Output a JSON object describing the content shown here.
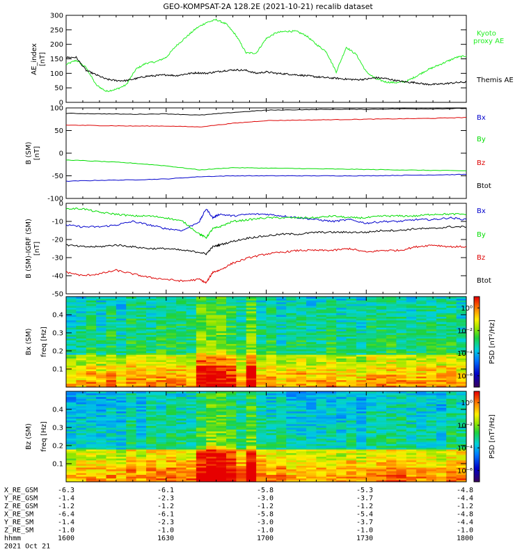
{
  "title": "GEO-KOMPSAT-2A 128.2E (2021-10-21) recalib dataset",
  "colors": {
    "black": "#000000",
    "red": "#dd0000",
    "green": "#00dd00",
    "blue": "#0000cc",
    "bright_green": "#22ee22"
  },
  "chart_data": [
    {
      "type": "line",
      "panel": "ae",
      "ylabel": "AE_index [nT]",
      "ylim": [
        0,
        300
      ],
      "yticks": [
        0,
        50,
        100,
        150,
        200,
        250,
        300
      ],
      "xlim": [
        0,
        120
      ],
      "legend_placement": "right",
      "series": [
        {
          "name": "Kyoto proxy AE",
          "color_key": "bright_green",
          "x": [
            0,
            3,
            6,
            9,
            12,
            15,
            18,
            21,
            24,
            27,
            30,
            33,
            36,
            39,
            42,
            45,
            48,
            51,
            54,
            57,
            60,
            63,
            66,
            69,
            72,
            75,
            78,
            81,
            84,
            87,
            90,
            93,
            96,
            99,
            102,
            105,
            108,
            111,
            114,
            117,
            120
          ],
          "y": [
            130,
            145,
            120,
            60,
            38,
            45,
            60,
            115,
            135,
            140,
            155,
            195,
            225,
            255,
            275,
            285,
            270,
            230,
            170,
            170,
            220,
            240,
            245,
            245,
            230,
            200,
            175,
            105,
            190,
            165,
            105,
            80,
            70,
            68,
            72,
            90,
            110,
            125,
            140,
            155,
            160
          ]
        },
        {
          "name": "Themis AE",
          "color_key": "black",
          "x": [
            0,
            3,
            6,
            9,
            12,
            15,
            18,
            21,
            24,
            27,
            30,
            33,
            36,
            39,
            42,
            45,
            48,
            51,
            54,
            57,
            60,
            63,
            66,
            69,
            72,
            75,
            78,
            81,
            84,
            87,
            90,
            93,
            96,
            99,
            102,
            105,
            108,
            111,
            114,
            117,
            120
          ],
          "y": [
            155,
            155,
            110,
            95,
            80,
            75,
            75,
            82,
            90,
            92,
            95,
            92,
            98,
            102,
            100,
            105,
            110,
            112,
            110,
            100,
            105,
            100,
            98,
            95,
            92,
            88,
            85,
            83,
            80,
            78,
            80,
            85,
            82,
            75,
            70,
            68,
            62,
            62,
            65,
            68,
            70
          ]
        }
      ]
    },
    {
      "type": "line",
      "panel": "bsm",
      "ylabel": "B (SM) [nT]",
      "ylim": [
        -100,
        100
      ],
      "yticks": [
        -100,
        -50,
        0,
        50,
        100
      ],
      "xlim": [
        0,
        120
      ],
      "legend_placement": "right",
      "series": [
        {
          "name": "Bx",
          "color_key": "blue",
          "x": [
            0,
            10,
            20,
            30,
            40,
            50,
            60,
            70,
            80,
            90,
            100,
            110,
            120
          ],
          "y": [
            -62,
            -60,
            -59,
            -57,
            -52,
            -50,
            -50,
            -50,
            -50,
            -50,
            -49,
            -48,
            -47
          ]
        },
        {
          "name": "By",
          "color_key": "green",
          "x": [
            0,
            10,
            20,
            30,
            40,
            50,
            60,
            70,
            80,
            90,
            100,
            110,
            120
          ],
          "y": [
            -15,
            -18,
            -22,
            -28,
            -37,
            -32,
            -33,
            -34,
            -35,
            -36,
            -37,
            -38,
            -39
          ]
        },
        {
          "name": "Bz",
          "color_key": "red",
          "x": [
            0,
            10,
            20,
            30,
            40,
            50,
            60,
            70,
            80,
            90,
            100,
            110,
            120
          ],
          "y": [
            62,
            61,
            60,
            60,
            58,
            66,
            72,
            73,
            74,
            75,
            76,
            77,
            79
          ]
        },
        {
          "name": "Btot",
          "color_key": "black",
          "x": [
            0,
            10,
            20,
            30,
            40,
            50,
            60,
            70,
            80,
            90,
            100,
            110,
            120
          ],
          "y": [
            88,
            87,
            86,
            87,
            84,
            90,
            95,
            96,
            97,
            97,
            98,
            98,
            99
          ]
        }
      ]
    },
    {
      "type": "line",
      "panel": "digrf",
      "ylabel": "B (SM)-IGRF (SM) [nT]",
      "ylim": [
        -50,
        0
      ],
      "yticks": [
        -50,
        -40,
        -30,
        -20,
        -10,
        0
      ],
      "xlim": [
        0,
        120
      ],
      "legend_placement": "right",
      "series": [
        {
          "name": "Bx",
          "color_key": "blue",
          "x": [
            0,
            5,
            10,
            15,
            20,
            25,
            30,
            35,
            40,
            42,
            44,
            46,
            50,
            55,
            60,
            65,
            70,
            75,
            80,
            85,
            90,
            95,
            100,
            105,
            110,
            115,
            120
          ],
          "y": [
            -12,
            -13,
            -13,
            -12,
            -10,
            -12,
            -14,
            -15,
            -10,
            -3,
            -8,
            -6,
            -7,
            -6,
            -6,
            -7,
            -8,
            -9,
            -10,
            -9,
            -11,
            -10,
            -10,
            -9,
            -9,
            -8,
            -9
          ]
        },
        {
          "name": "By",
          "color_key": "green",
          "x": [
            0,
            5,
            10,
            15,
            20,
            25,
            30,
            35,
            40,
            42,
            44,
            46,
            50,
            55,
            60,
            65,
            70,
            75,
            80,
            85,
            90,
            95,
            100,
            105,
            110,
            115,
            120
          ],
          "y": [
            -3,
            -3,
            -5,
            -6,
            -7,
            -7,
            -8,
            -10,
            -17,
            -19,
            -14,
            -13,
            -10,
            -9,
            -8,
            -8,
            -8,
            -8,
            -7,
            -8,
            -8,
            -7,
            -7,
            -7,
            -6,
            -6,
            -6
          ]
        },
        {
          "name": "Bz",
          "color_key": "red",
          "x": [
            0,
            5,
            10,
            15,
            20,
            25,
            30,
            35,
            40,
            42,
            44,
            46,
            50,
            55,
            60,
            65,
            70,
            75,
            80,
            85,
            90,
            95,
            100,
            105,
            110,
            115,
            120
          ],
          "y": [
            -38,
            -40,
            -39,
            -37,
            -39,
            -41,
            -42,
            -43,
            -42,
            -44,
            -38,
            -37,
            -33,
            -30,
            -28,
            -27,
            -26,
            -26,
            -26,
            -25,
            -27,
            -26,
            -26,
            -24,
            -23,
            -24,
            -24
          ]
        },
        {
          "name": "Btot",
          "color_key": "black",
          "x": [
            0,
            5,
            10,
            15,
            20,
            25,
            30,
            35,
            40,
            42,
            44,
            46,
            50,
            55,
            60,
            65,
            70,
            75,
            80,
            85,
            90,
            95,
            100,
            105,
            110,
            115,
            120
          ],
          "y": [
            -23,
            -24,
            -24,
            -23,
            -24,
            -25,
            -25,
            -26,
            -27,
            -28,
            -24,
            -23,
            -21,
            -19,
            -18,
            -17,
            -17,
            -16,
            -16,
            -16,
            -16,
            -15,
            -15,
            -14,
            -14,
            -13,
            -13
          ]
        }
      ]
    },
    {
      "type": "heatmap",
      "panel": "bx_spec",
      "ylabel": "Bx (SM) freq [Hz]",
      "ylim": [
        0,
        0.5
      ],
      "yticks": [
        0.1,
        0.2,
        0.3,
        0.4
      ],
      "xlim": [
        0,
        120
      ],
      "colorbar_label": "PSD [nT²/Hz]",
      "colorbar_ticks": [
        "10⁰",
        "10⁻²",
        "10⁻⁴",
        "10⁻⁶"
      ],
      "colorbar_log_range": [
        -7,
        1
      ],
      "n_time": 40,
      "n_freq": 50,
      "low_freq_logpsd": [
        -1.5,
        -1.0,
        -0.6,
        -0.3
      ],
      "high_freq_logpsd": -3.5,
      "burst_x": [
        40,
        44,
        48,
        56
      ],
      "burst_boost": 1.5
    },
    {
      "type": "heatmap",
      "panel": "bz_spec",
      "ylabel": "Bz (SM) freq [Hz]",
      "ylim": [
        0,
        0.5
      ],
      "yticks": [
        0.1,
        0.2,
        0.3,
        0.4
      ],
      "xlim": [
        0,
        120
      ],
      "colorbar_label": "PSD [nT²/Hz]",
      "colorbar_ticks": [
        "10⁰",
        "10⁻²",
        "10⁻⁴",
        "10⁻⁶"
      ],
      "colorbar_log_range": [
        -7,
        1
      ],
      "n_time": 40,
      "n_freq": 50,
      "low_freq_logpsd": [
        -1.2,
        -0.8,
        -0.4,
        -0.1
      ],
      "high_freq_logpsd": -3.8,
      "burst_x": [
        40,
        44,
        48,
        56
      ],
      "burst_boost": 1.8
    }
  ],
  "ephemeris": {
    "rows": [
      {
        "label": "X_RE_GSM",
        "values": [
          "-6.3",
          "-6.1",
          "-5.8",
          "-5.3",
          "-4.8"
        ]
      },
      {
        "label": "Y_RE_GSM",
        "values": [
          "-1.4",
          "-2.3",
          "-3.0",
          "-3.7",
          "-4.4"
        ]
      },
      {
        "label": "Z_RE_GSM",
        "values": [
          "-1.2",
          "-1.2",
          "-1.2",
          "-1.2",
          "-1.2"
        ]
      },
      {
        "label": "X_RE_SM",
        "values": [
          "-6.4",
          "-6.1",
          "-5.8",
          "-5.4",
          "-4.8"
        ]
      },
      {
        "label": "Y_RE_SM",
        "values": [
          "-1.4",
          "-2.3",
          "-3.0",
          "-3.7",
          "-4.4"
        ]
      },
      {
        "label": "Z_RE_SM",
        "values": [
          "-1.0",
          "-1.0",
          "-1.0",
          "-1.0",
          "-1.0"
        ]
      },
      {
        "label": "hhmm",
        "values": [
          "1600",
          "1630",
          "1700",
          "1730",
          "1800"
        ]
      }
    ],
    "date": "2021 Oct 21"
  }
}
